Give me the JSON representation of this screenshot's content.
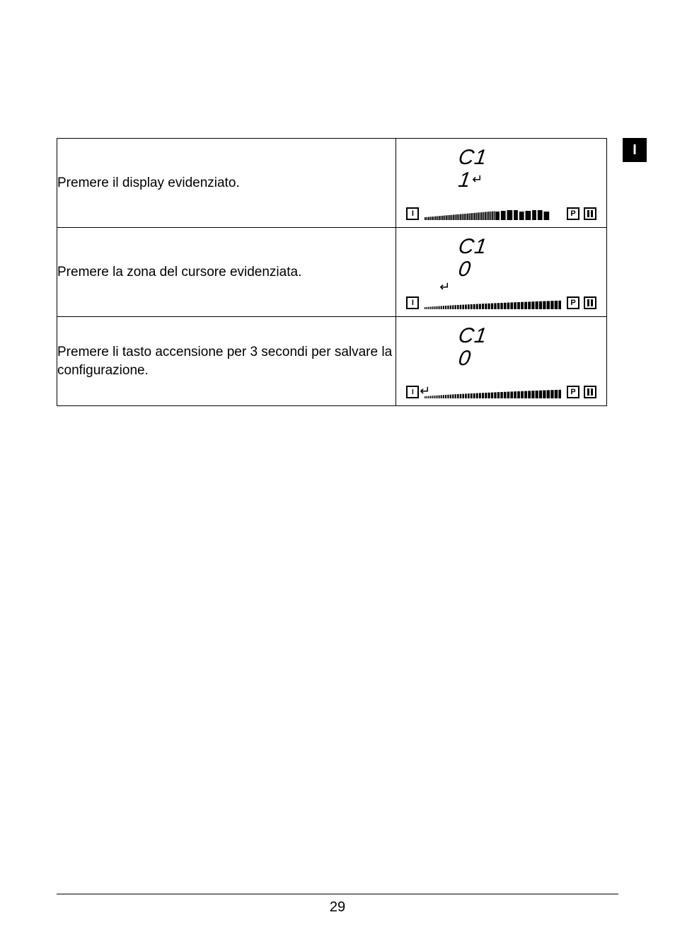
{
  "side_tab": {
    "label": "I"
  },
  "rows": [
    {
      "text": "Premere il display evidenziato.",
      "diagram": {
        "top_seg": "C1",
        "mid_seg": "1",
        "mid_enter_arrow": true,
        "enter_icon_over_slider": false,
        "enter_icon_on_power": false,
        "slider_variant": "A",
        "power_label": "I",
        "p_label": "P"
      }
    },
    {
      "text": "Premere la zona del cursore evidenziata.",
      "diagram": {
        "top_seg": "C1",
        "mid_seg": "0",
        "mid_enter_arrow": false,
        "enter_icon_over_slider": true,
        "enter_icon_on_power": false,
        "slider_variant": "B",
        "power_label": "I",
        "p_label": "P"
      }
    },
    {
      "text": "Premere li tasto accensione per 3 secondi per salvare la configurazione.",
      "diagram": {
        "top_seg": "C1",
        "mid_seg": "0",
        "mid_enter_arrow": false,
        "enter_icon_over_slider": false,
        "enter_icon_on_power": true,
        "slider_variant": "B",
        "power_label": "I",
        "p_label": "P"
      }
    }
  ],
  "page_number": "29"
}
